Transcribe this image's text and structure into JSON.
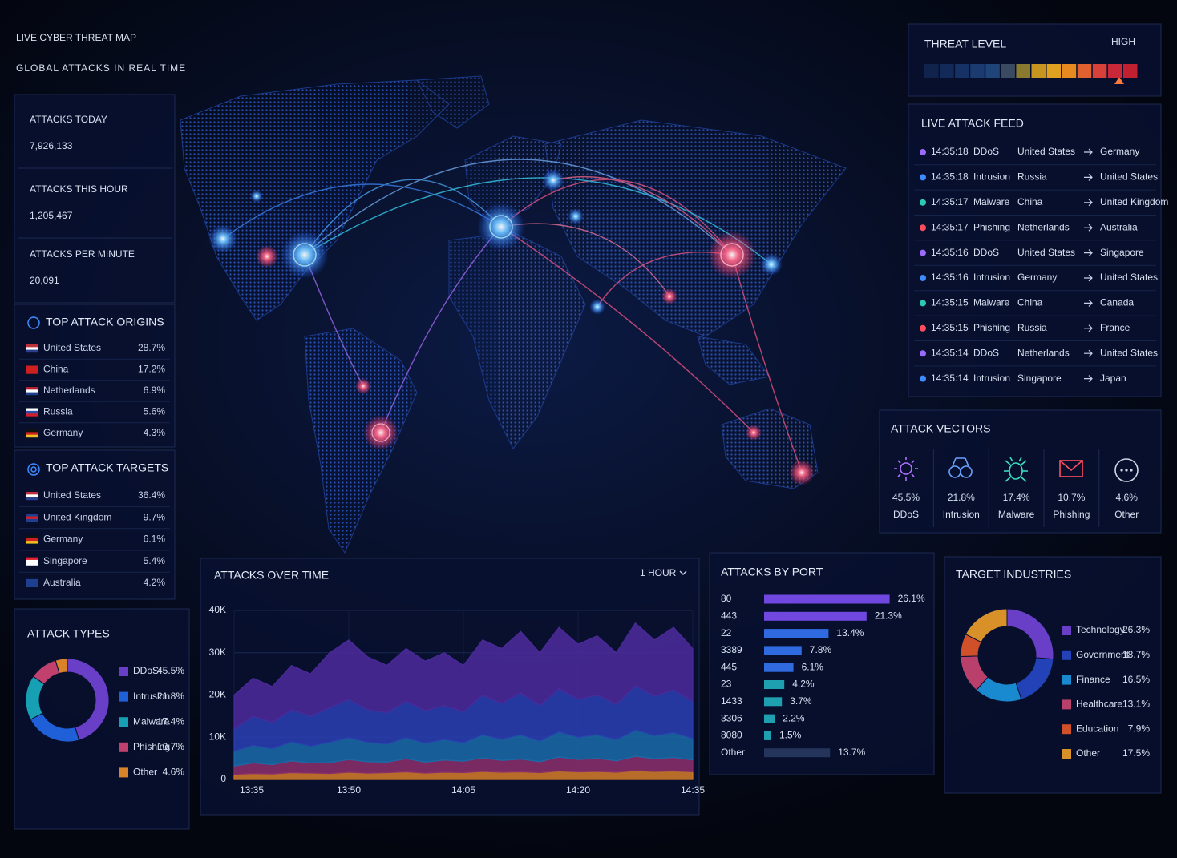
{
  "header": {
    "title": "LIVE CYBER THREAT MAP",
    "subtitle": "GLOBAL ATTACKS IN REAL TIME"
  },
  "stats": [
    {
      "label": "ATTACKS TODAY",
      "value": "7,926,133"
    },
    {
      "label": "ATTACKS THIS HOUR",
      "value": "1,205,467"
    },
    {
      "label": "ATTACKS PER MINUTE",
      "value": "20,091"
    }
  ],
  "top_origins": {
    "title": "TOP ATTACK ORIGINS",
    "rows": [
      {
        "country": "United States",
        "share": "28.7%"
      },
      {
        "country": "China",
        "share": "17.2%"
      },
      {
        "country": "Netherlands",
        "share": "6.9%"
      },
      {
        "country": "Russia",
        "share": "5.6%"
      },
      {
        "country": "Germany",
        "share": "4.3%"
      }
    ]
  },
  "top_targets": {
    "title": "TOP ATTACK TARGETS",
    "rows": [
      {
        "country": "United States",
        "share": "36.4%"
      },
      {
        "country": "United Kingdom",
        "share": "9.7%"
      },
      {
        "country": "Germany",
        "share": "6.1%"
      },
      {
        "country": "Singapore",
        "share": "5.4%"
      },
      {
        "country": "Australia",
        "share": "4.2%"
      }
    ]
  },
  "threat_level": {
    "title": "THREAT LEVEL",
    "level": "HIGH"
  },
  "feed": {
    "title": "LIVE ATTACK FEED",
    "rows": [
      {
        "time": "14:35:18",
        "type": "DDoS",
        "from": "United States",
        "to": "Germany",
        "color": "#9b6bff"
      },
      {
        "time": "14:35:18",
        "type": "Intrusion",
        "from": "Russia",
        "to": "United States",
        "color": "#3d8bff"
      },
      {
        "time": "14:35:17",
        "type": "Malware",
        "from": "China",
        "to": "United Kingdom",
        "color": "#2cc9b5"
      },
      {
        "time": "14:35:17",
        "type": "Phishing",
        "from": "Netherlands",
        "to": "Australia",
        "color": "#ff4d5e"
      },
      {
        "time": "14:35:16",
        "type": "DDoS",
        "from": "United States",
        "to": "Singapore",
        "color": "#9b6bff"
      },
      {
        "time": "14:35:16",
        "type": "Intrusion",
        "from": "Germany",
        "to": "United States",
        "color": "#3d8bff"
      },
      {
        "time": "14:35:15",
        "type": "Malware",
        "from": "China",
        "to": "Canada",
        "color": "#2cc9b5"
      },
      {
        "time": "14:35:15",
        "type": "Phishing",
        "from": "Russia",
        "to": "France",
        "color": "#ff4d5e"
      },
      {
        "time": "14:35:14",
        "type": "DDoS",
        "from": "Netherlands",
        "to": "United States",
        "color": "#9b6bff"
      },
      {
        "time": "14:35:14",
        "type": "Intrusion",
        "from": "Singapore",
        "to": "Japan",
        "color": "#3d8bff"
      }
    ]
  },
  "vectors": {
    "title": "ATTACK VECTORS",
    "items": [
      {
        "value": "45.5%",
        "name": "DDoS",
        "color": "#b070ff"
      },
      {
        "value": "21.8%",
        "name": "Intrusion",
        "color": "#6aa0ff"
      },
      {
        "value": "17.4%",
        "name": "Malware",
        "color": "#3de0c0"
      },
      {
        "value": "10.7%",
        "name": "Phishing",
        "color": "#ff5060"
      },
      {
        "value": "4.6%",
        "name": "Other",
        "color": "#d0d6e4"
      }
    ]
  },
  "chart_data": [
    {
      "type": "pie",
      "title": "ATTACK TYPES",
      "categories": [
        "DDoS",
        "Intrusion",
        "Malware",
        "Phishing",
        "Other"
      ],
      "values": [
        45.5,
        21.8,
        17.4,
        10.7,
        4.6
      ],
      "value_labels": [
        "45.5%",
        "21.8%",
        "17.4%",
        "10.7%",
        "4.6%"
      ],
      "colors": [
        "#6a3fc8",
        "#1f5fd8",
        "#17a0b4",
        "#c0406e",
        "#d8822a"
      ]
    },
    {
      "type": "area",
      "title": "ATTACKS OVER TIME",
      "range_label": "1 HOUR",
      "stacked": true,
      "grid": true,
      "categories": [
        "13:35",
        null,
        null,
        null,
        null,
        null,
        "13:50",
        null,
        null,
        null,
        null,
        null,
        "14:05",
        null,
        null,
        null,
        null,
        null,
        "14:20",
        null,
        null,
        null,
        null,
        null,
        "14:35"
      ],
      "ylim": [
        0,
        40000
      ],
      "yticks": [
        0,
        {
          "value": 10000,
          "label": "10K"
        },
        {
          "value": 20000,
          "label": "20K"
        },
        {
          "value": 30000,
          "label": "30K"
        },
        {
          "value": 40000,
          "label": "40K"
        }
      ],
      "series": [
        {
          "color": "#d07a2a",
          "values": [
            1200,
            1400,
            1300,
            1600,
            1500,
            1400,
            1700,
            1500,
            1600,
            1800,
            1500,
            1700,
            1600,
            1900,
            1700,
            1800,
            1600,
            2000,
            1800,
            1900,
            1700,
            2100,
            1900,
            2000,
            1800
          ]
        },
        {
          "color": "#8a2f6a",
          "values": [
            2000,
            2500,
            2200,
            2800,
            2400,
            2600,
            3000,
            2700,
            2500,
            3100,
            2600,
            2900,
            2700,
            3200,
            2800,
            3000,
            2600,
            3300,
            2900,
            3100,
            2700,
            3400,
            3000,
            3200,
            2800
          ]
        },
        {
          "color": "#1a6aa8",
          "values": [
            3500,
            4200,
            3800,
            4500,
            4000,
            4800,
            5200,
            4600,
            4300,
            5000,
            4500,
            4900,
            4400,
            5500,
            5000,
            5800,
            4900,
            6000,
            5300,
            5600,
            5000,
            6200,
            5500,
            5900,
            5100
          ]
        },
        {
          "color": "#2a3fb0",
          "values": [
            5300,
            6900,
            6200,
            7600,
            7100,
            8200,
            9100,
            7700,
            7400,
            8600,
            7700,
            8000,
            7300,
            9400,
            8500,
            9900,
            8400,
            10200,
            9000,
            9400,
            8400,
            10500,
            9300,
            10100,
            8800
          ]
        },
        {
          "color": "#4b2a9a",
          "values": [
            8000,
            9000,
            8500,
            10500,
            10000,
            13000,
            14000,
            12500,
            11200,
            12500,
            11700,
            12500,
            11000,
            13000,
            13000,
            14500,
            12500,
            14500,
            13000,
            14000,
            12200,
            14800,
            13300,
            14800,
            12500
          ]
        }
      ]
    },
    {
      "type": "bar",
      "title": "ATTACKS BY PORT",
      "orientation": "horizontal",
      "categories": [
        "80",
        "443",
        "22",
        "3389",
        "445",
        "23",
        "1433",
        "3306",
        "8080",
        "Other"
      ],
      "values": [
        26.1,
        21.3,
        13.4,
        7.8,
        6.1,
        4.2,
        3.7,
        2.2,
        1.5,
        13.7
      ],
      "value_labels": [
        "26.1%",
        "21.3%",
        "13.4%",
        "7.8%",
        "6.1%",
        "4.2%",
        "3.7%",
        "2.2%",
        "1.5%",
        "13.7%"
      ],
      "colors": [
        "#7048e0",
        "#7048e0",
        "#2f6ae0",
        "#2f6ae0",
        "#2f6ae0",
        "#1ea0b0",
        "#1ea0b0",
        "#1ea0b0",
        "#1ea0b0",
        "#24345a"
      ]
    },
    {
      "type": "pie",
      "title": "TARGET INDUSTRIES",
      "categories": [
        "Technology",
        "Government",
        "Finance",
        "Healthcare",
        "Education",
        "Other"
      ],
      "values": [
        26.3,
        18.7,
        16.5,
        13.1,
        7.9,
        17.5
      ],
      "value_labels": [
        "26.3%",
        "18.7%",
        "16.5%",
        "13.1%",
        "7.9%",
        "17.5%"
      ],
      "colors": [
        "#6a3fc8",
        "#2342b8",
        "#1a8ad0",
        "#b8406a",
        "#d0502a",
        "#d89028"
      ]
    }
  ]
}
